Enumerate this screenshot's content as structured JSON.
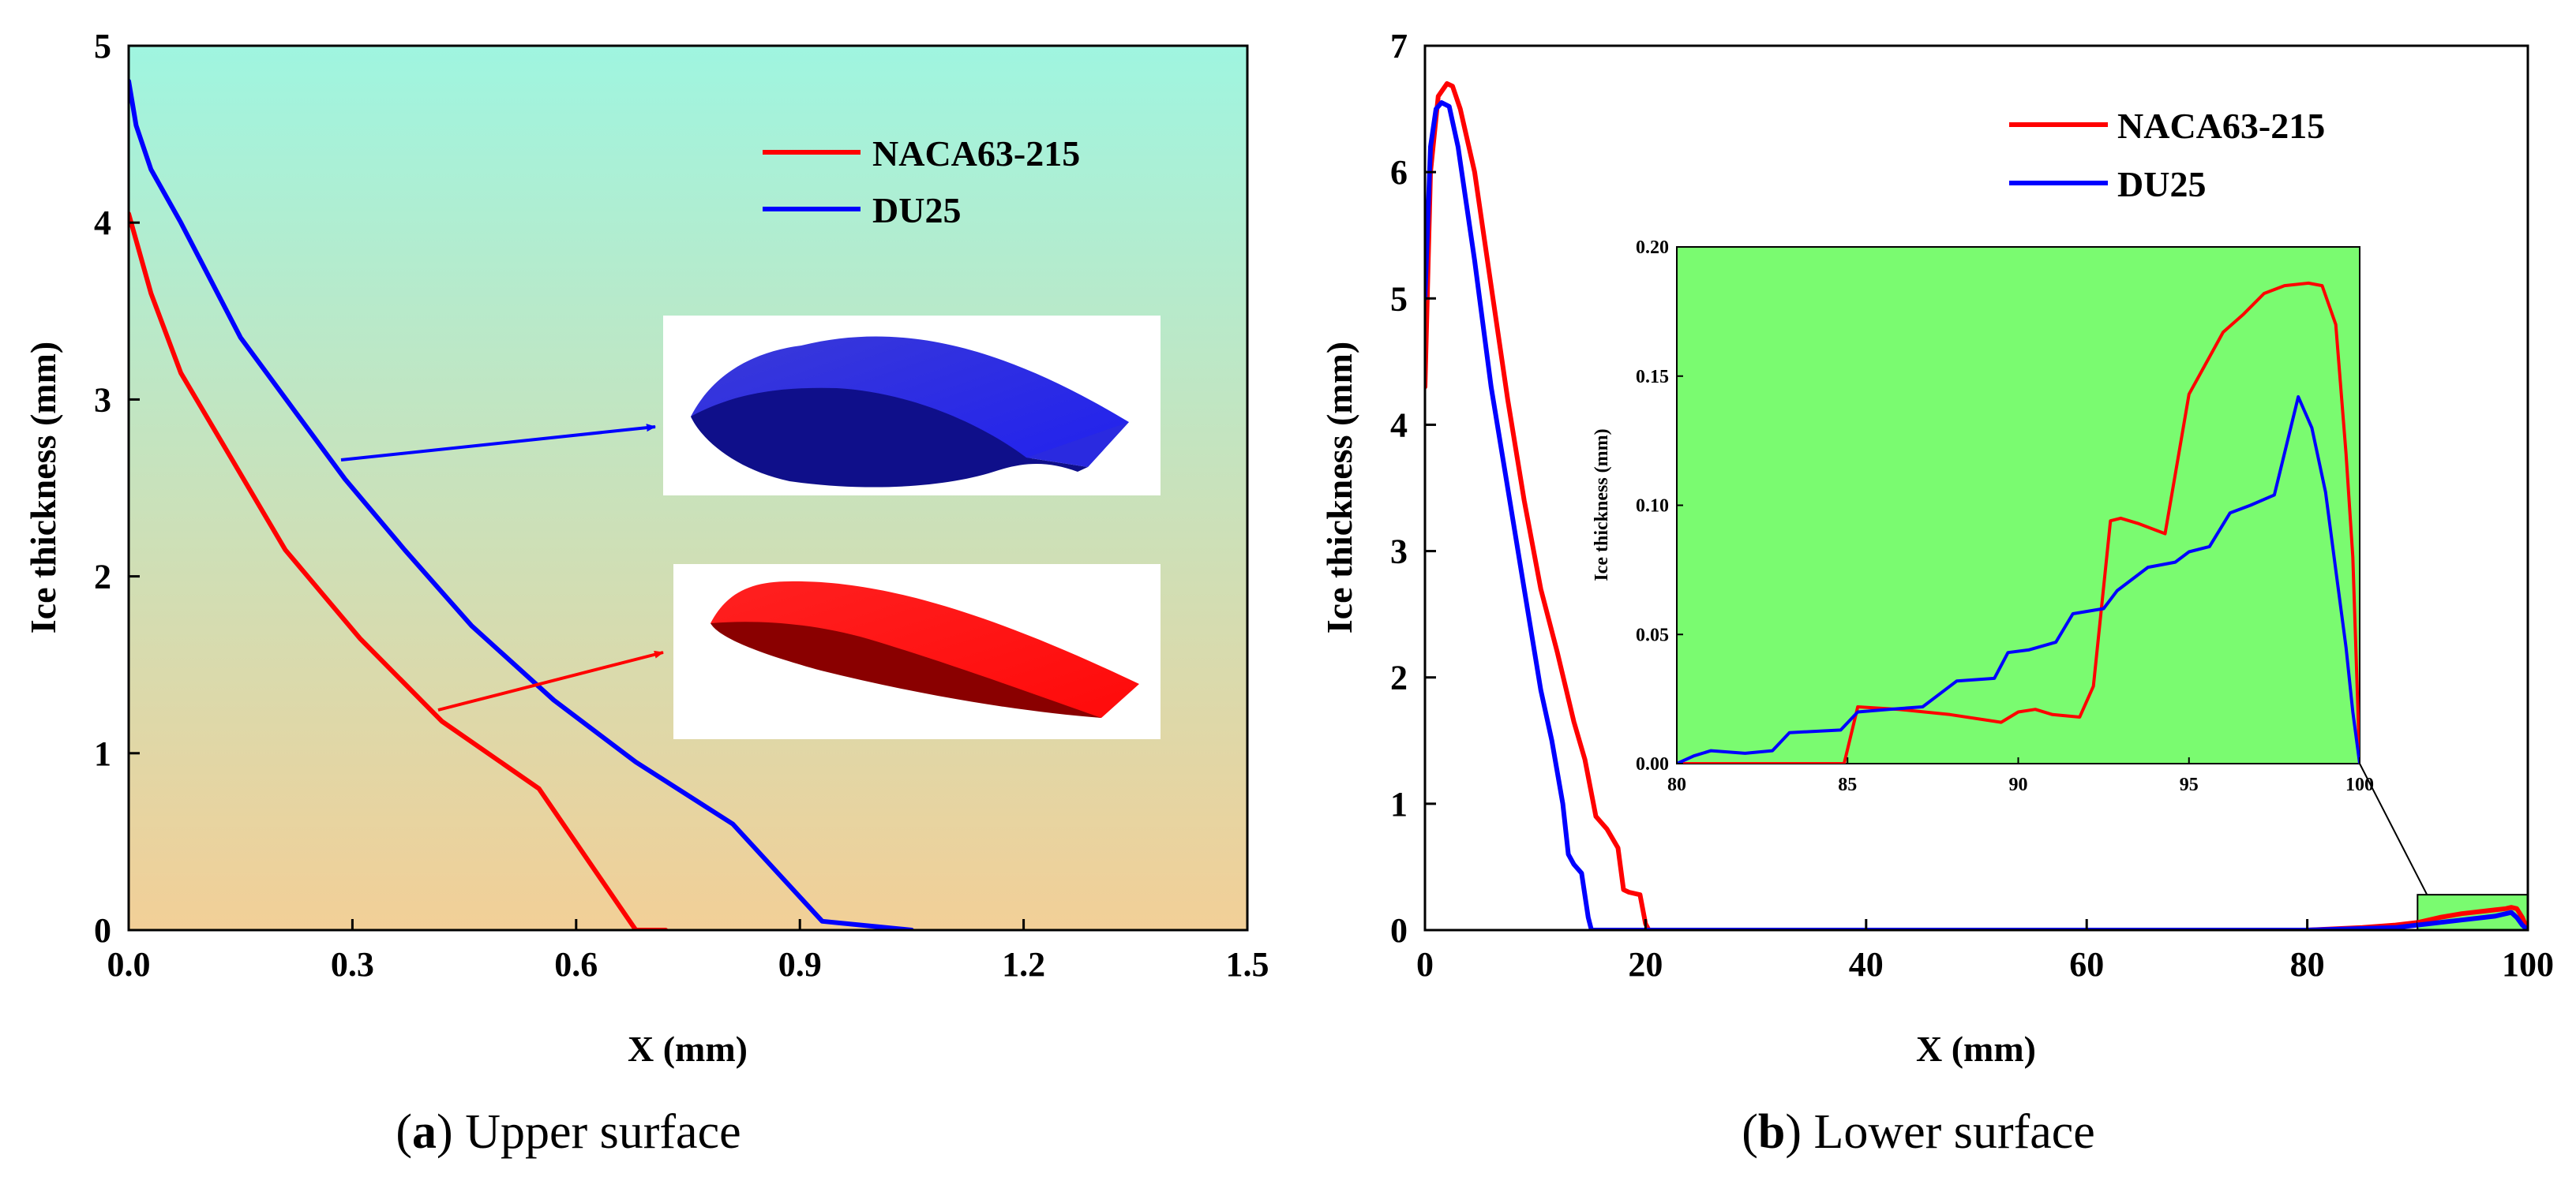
{
  "chart_data": [
    {
      "type": "line",
      "panel_letter": "a",
      "caption": "Upper surface",
      "xlabel": "X (mm)",
      "ylabel": "Ice thickness (mm)",
      "xlim": [
        0,
        1.5
      ],
      "ylim": [
        0,
        5
      ],
      "xticks": [
        "0.0",
        "0.3",
        "0.6",
        "0.9",
        "1.2",
        "1.5"
      ],
      "yticks": [
        "0",
        "1",
        "2",
        "3",
        "4",
        "5"
      ],
      "background_gradient": [
        "#9ff5e0",
        "#f2cf97"
      ],
      "legend_position": "top-right",
      "series": [
        {
          "name": "NACA63-215",
          "color": "#ff0000",
          "x": [
            0,
            0.03,
            0.07,
            0.14,
            0.21,
            0.31,
            0.42,
            0.55,
            0.68,
            0.72
          ],
          "y": [
            4.05,
            3.6,
            3.15,
            2.65,
            2.15,
            1.65,
            1.18,
            0.8,
            0.0,
            0.0
          ]
        },
        {
          "name": "DU25",
          "color": "#0000ff",
          "x": [
            0.0,
            0.01,
            0.03,
            0.07,
            0.15,
            0.22,
            0.29,
            0.37,
            0.46,
            0.57,
            0.68,
            0.81,
            0.93,
            1.05
          ],
          "y": [
            4.8,
            4.55,
            4.3,
            4.0,
            3.35,
            2.95,
            2.55,
            2.15,
            1.72,
            1.3,
            0.95,
            0.6,
            0.05,
            0.0
          ]
        }
      ]
    },
    {
      "type": "line",
      "panel_letter": "b",
      "caption": "Lower surface",
      "xlabel": "X (mm)",
      "ylabel": "Ice thickness (mm)",
      "xlim": [
        0,
        100
      ],
      "ylim": [
        0,
        7
      ],
      "xticks": [
        "0",
        "20",
        "40",
        "60",
        "80",
        "100"
      ],
      "yticks": [
        "0",
        "1",
        "2",
        "3",
        "4",
        "5",
        "6",
        "7"
      ],
      "legend_position": "top-right",
      "series": [
        {
          "name": "NACA63-215",
          "color": "#ff0000",
          "x": [
            0,
            0.5,
            1.2,
            2.0,
            2.5,
            3.2,
            4.5,
            6.0,
            7.5,
            9.0,
            10.5,
            12.0,
            13.5,
            14.5,
            15.5,
            16.5,
            17.5,
            18.0,
            18.5,
            19.5,
            20.0,
            20.3,
            30,
            50,
            70,
            80,
            85,
            88,
            90,
            92,
            94,
            96,
            97,
            98,
            98.5,
            99,
            99.5,
            100
          ],
          "y": [
            4.3,
            6.0,
            6.6,
            6.7,
            6.68,
            6.5,
            6.0,
            5.1,
            4.2,
            3.4,
            2.7,
            2.2,
            1.65,
            1.35,
            0.9,
            0.8,
            0.65,
            0.32,
            0.3,
            0.28,
            0.05,
            0.0,
            0.0,
            0.0,
            0.0,
            0.0,
            0.02,
            0.04,
            0.06,
            0.1,
            0.13,
            0.15,
            0.16,
            0.17,
            0.18,
            0.17,
            0.1,
            0.0
          ]
        },
        {
          "name": "DU25",
          "color": "#0000ff",
          "x": [
            0,
            0.5,
            1.0,
            1.5,
            2.2,
            3.0,
            4.5,
            6.0,
            7.5,
            9.0,
            10.5,
            11.5,
            12.5,
            13.0,
            13.5,
            14.2,
            14.8,
            15.1,
            30,
            50,
            70,
            80,
            84,
            88,
            90,
            92,
            94,
            96,
            97,
            98,
            98.5,
            99,
            99.5,
            100
          ],
          "y": [
            5.0,
            6.2,
            6.5,
            6.55,
            6.52,
            6.2,
            5.3,
            4.3,
            3.5,
            2.7,
            1.9,
            1.5,
            1.0,
            0.6,
            0.52,
            0.45,
            0.1,
            0.0,
            0.0,
            0.0,
            0.0,
            0.0,
            0.01,
            0.02,
            0.04,
            0.06,
            0.08,
            0.1,
            0.11,
            0.13,
            0.14,
            0.1,
            0.04,
            0.0
          ]
        }
      ],
      "highlight_region": {
        "x": [
          90,
          100
        ],
        "y": [
          0,
          0.28
        ]
      },
      "inset": {
        "xlim": [
          80,
          100
        ],
        "ylim": [
          0,
          0.2
        ],
        "xticks": [
          "80",
          "85",
          "90",
          "95",
          "100"
        ],
        "yticks": [
          "0.00",
          "0.05",
          "0.10",
          "0.15",
          "0.20"
        ],
        "ylabel": "Ice thickness (mm)",
        "background": "#7afb70",
        "series": [
          {
            "name": "NACA63-215",
            "color": "#ff0000",
            "x": [
              80,
              84.9,
              85.3,
              86.5,
              88,
              89.5,
              90,
              90.5,
              91,
              91.8,
              92.2,
              92.7,
              93,
              93.5,
              94.3,
              95.0,
              95.5,
              96.0,
              96.6,
              97.2,
              97.8,
              98.5,
              98.9,
              99.3,
              99.6,
              99.8,
              100
            ],
            "y": [
              0.0,
              0.0,
              0.022,
              0.021,
              0.019,
              0.016,
              0.02,
              0.021,
              0.019,
              0.018,
              0.03,
              0.094,
              0.095,
              0.093,
              0.089,
              0.143,
              0.155,
              0.167,
              0.174,
              0.182,
              0.185,
              0.186,
              0.185,
              0.17,
              0.12,
              0.08,
              0.0
            ]
          },
          {
            "name": "DU25",
            "color": "#0000ff",
            "x": [
              80,
              80.5,
              81,
              82,
              82.8,
              83.3,
              84.8,
              85.3,
              86.2,
              87.2,
              88.2,
              89.3,
              89.7,
              90.3,
              91.1,
              91.6,
              92.5,
              92.9,
              93.8,
              94.6,
              95.0,
              95.6,
              96.2,
              96.8,
              97.5,
              98.2,
              98.6,
              99.0,
              99.3,
              99.6,
              99.8,
              100
            ],
            "y": [
              0.0,
              0.003,
              0.005,
              0.004,
              0.005,
              0.012,
              0.013,
              0.02,
              0.021,
              0.022,
              0.032,
              0.033,
              0.043,
              0.044,
              0.047,
              0.058,
              0.06,
              0.067,
              0.076,
              0.078,
              0.082,
              0.084,
              0.097,
              0.1,
              0.104,
              0.142,
              0.13,
              0.105,
              0.075,
              0.045,
              0.02,
              0.0
            ]
          }
        ]
      }
    }
  ]
}
